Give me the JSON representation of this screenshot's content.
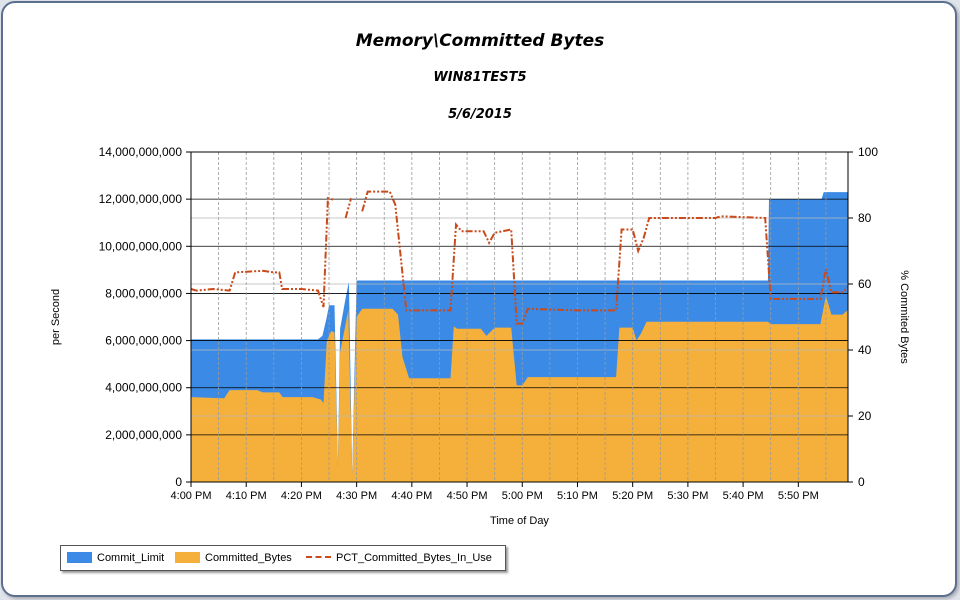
{
  "chart_data": {
    "type": "area",
    "title": "Memory\\Committed Bytes",
    "subtitle": "WIN81TEST5",
    "date": "5/6/2015",
    "xlabel": "Time of Day",
    "ylabel": "per Second",
    "y2label": "% Commited Bytes",
    "ylim": [
      0,
      14000000000
    ],
    "y2lim": [
      0,
      100
    ],
    "yticks": [
      "0",
      "2,000,000,000",
      "4,000,000,000",
      "6,000,000,000",
      "8,000,000,000",
      "10,000,000,000",
      "12,000,000,000",
      "14,000,000,000"
    ],
    "y2ticks": [
      "0",
      "20",
      "40",
      "60",
      "80",
      "100"
    ],
    "xticks": [
      "4:00 PM",
      "4:10 PM",
      "4:20 PM",
      "4:30 PM",
      "4:40 PM",
      "4:50 PM",
      "5:00 PM",
      "5:10 PM",
      "5:20 PM",
      "5:30 PM",
      "5:40 PM",
      "5:50 PM"
    ],
    "xlim_minutes": [
      0,
      119
    ],
    "grid": true,
    "legend_position": "bottom-left",
    "colors": {
      "Commit_Limit": "#3b8ae6",
      "Committed_Bytes": "#f5b03c",
      "PCT_Committed_Bytes_In_Use": "#c94a1a"
    },
    "series": [
      {
        "name": "Commit_Limit",
        "axis": "left",
        "style": "area",
        "points": [
          [
            0,
            6050000000
          ],
          [
            23,
            6050000000
          ],
          [
            23.8,
            6200000000
          ],
          [
            24.6,
            7000000000
          ],
          [
            25,
            7500000000
          ],
          [
            26,
            7500000000
          ],
          [
            26.6,
            700000000
          ],
          [
            27,
            6500000000
          ],
          [
            28,
            7800000000
          ],
          [
            28.6,
            8500000000
          ],
          [
            29.2,
            300000000
          ],
          [
            30,
            8550000000
          ],
          [
            118.9,
            8550000000
          ],
          [
            118.9,
            8500000000
          ],
          [
            104.5,
            8500000000
          ],
          [
            104.7,
            12000000000
          ],
          [
            114.2,
            12000000000
          ],
          [
            114.6,
            12300000000
          ],
          [
            119,
            12300000000
          ]
        ]
      },
      {
        "name": "Committed_Bytes",
        "axis": "left",
        "style": "area",
        "points": [
          [
            0,
            3600000000
          ],
          [
            6,
            3550000000
          ],
          [
            7,
            3900000000
          ],
          [
            12,
            3900000000
          ],
          [
            13,
            3800000000
          ],
          [
            16,
            3800000000
          ],
          [
            16.6,
            3600000000
          ],
          [
            22,
            3600000000
          ],
          [
            23.5,
            3500000000
          ],
          [
            24,
            3350000000
          ],
          [
            24.6,
            6000000000
          ],
          [
            25.4,
            6400000000
          ],
          [
            26,
            6350000000
          ],
          [
            26.6,
            600000000
          ],
          [
            27,
            5500000000
          ],
          [
            28,
            6700000000
          ],
          [
            28.5,
            7300000000
          ],
          [
            29.2,
            300000000
          ],
          [
            30,
            7000000000
          ],
          [
            31,
            7350000000
          ],
          [
            36.5,
            7350000000
          ],
          [
            37.5,
            7100000000
          ],
          [
            38.3,
            5300000000
          ],
          [
            39.5,
            4400000000
          ],
          [
            47,
            4400000000
          ],
          [
            47.6,
            6600000000
          ],
          [
            48.2,
            6500000000
          ],
          [
            52.5,
            6500000000
          ],
          [
            53.5,
            6200000000
          ],
          [
            55,
            6550000000
          ],
          [
            58,
            6550000000
          ],
          [
            59,
            4100000000
          ],
          [
            60,
            4100000000
          ],
          [
            61,
            4450000000
          ],
          [
            70,
            4450000000
          ],
          [
            77,
            4450000000
          ],
          [
            77.6,
            6550000000
          ],
          [
            80,
            6550000000
          ],
          [
            80.7,
            6000000000
          ],
          [
            81.5,
            6300000000
          ],
          [
            82.5,
            6800000000
          ],
          [
            104.5,
            6800000000
          ],
          [
            105,
            6700000000
          ],
          [
            114,
            6700000000
          ],
          [
            115,
            7900000000
          ],
          [
            116,
            7100000000
          ],
          [
            118,
            7100000000
          ],
          [
            119,
            7300000000
          ]
        ]
      },
      {
        "name": "PCT_Committed_Bytes_In_Use",
        "axis": "right",
        "style": "dash-dot-dot",
        "points": [
          [
            0,
            58.5
          ],
          [
            1,
            58.0
          ],
          [
            4,
            58.5
          ],
          [
            7,
            58.0
          ],
          [
            8,
            63.5
          ],
          [
            13,
            64.0
          ],
          [
            15,
            63.5
          ],
          [
            16,
            63.5
          ],
          [
            16.5,
            58.5
          ],
          [
            20,
            58.5
          ],
          [
            23,
            58.0
          ],
          [
            24,
            53.0
          ],
          [
            24.8,
            86.0
          ],
          [
            26,
            85.5
          ],
          null,
          [
            28,
            80.0
          ],
          [
            29,
            86.0
          ],
          null,
          [
            31,
            82.0
          ],
          [
            32,
            88.0
          ],
          [
            36,
            88.0
          ],
          [
            37,
            84.0
          ],
          [
            39,
            52.0
          ],
          [
            47,
            52.0
          ],
          [
            48,
            78.0
          ],
          [
            49,
            76.0
          ],
          [
            53,
            76.0
          ],
          [
            54,
            72.5
          ],
          [
            55,
            75.5
          ],
          [
            58,
            76.5
          ],
          [
            59,
            48.0
          ],
          [
            60,
            48.0
          ],
          [
            61,
            52.5
          ],
          [
            70,
            52.0
          ],
          [
            77,
            52.0
          ],
          [
            78,
            76.5
          ],
          [
            80,
            76.5
          ],
          [
            81,
            70.0
          ],
          [
            82,
            74.0
          ],
          [
            83,
            80.0
          ],
          [
            95,
            80.0
          ],
          [
            96,
            80.5
          ],
          [
            104,
            80.0
          ],
          [
            105,
            55.5
          ],
          [
            114,
            55.5
          ],
          [
            115,
            64.5
          ],
          [
            116,
            57.5
          ],
          [
            118,
            57.5
          ],
          [
            119,
            59.0
          ]
        ]
      }
    ]
  }
}
